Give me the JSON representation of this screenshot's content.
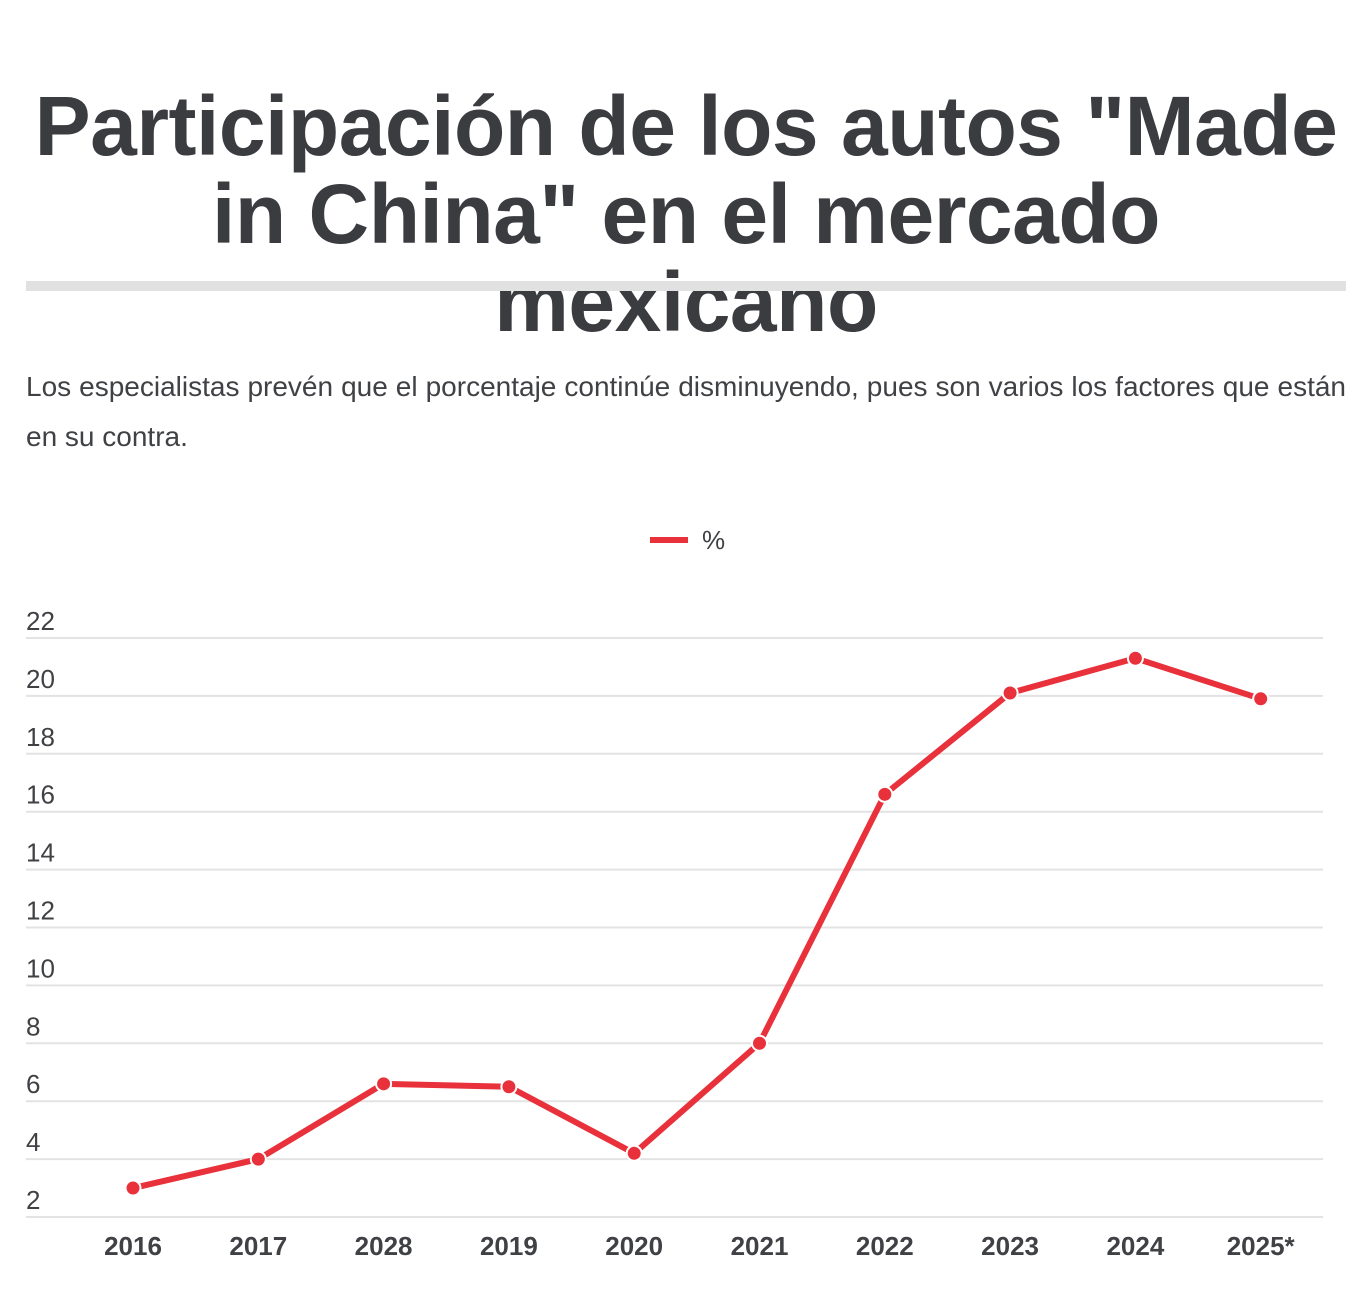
{
  "title": "Participación de los autos \"Made in China\" en el mercado mexicano",
  "subtitle": "Los especialistas prevén que el porcentaje continúe disminuyendo, pues son varios los factores que están en su contra.",
  "chart_data": {
    "type": "line",
    "title": "Participación de los autos \"Made in China\" en el mercado mexicano",
    "xlabel": "",
    "ylabel": "",
    "categories": [
      "2016",
      "2017",
      "2028",
      "2019",
      "2020",
      "2021",
      "2022",
      "2023",
      "2024",
      "2025*"
    ],
    "series": [
      {
        "name": "%",
        "color": "#e8313b",
        "values": [
          3.0,
          4.0,
          6.6,
          6.5,
          4.2,
          8.0,
          16.6,
          20.1,
          21.3,
          19.9
        ]
      }
    ],
    "yticks": [
      2,
      4,
      6,
      8,
      10,
      12,
      14,
      16,
      18,
      20,
      22
    ],
    "ylim": [
      2,
      22
    ],
    "grid": true,
    "legend": "top-center"
  }
}
